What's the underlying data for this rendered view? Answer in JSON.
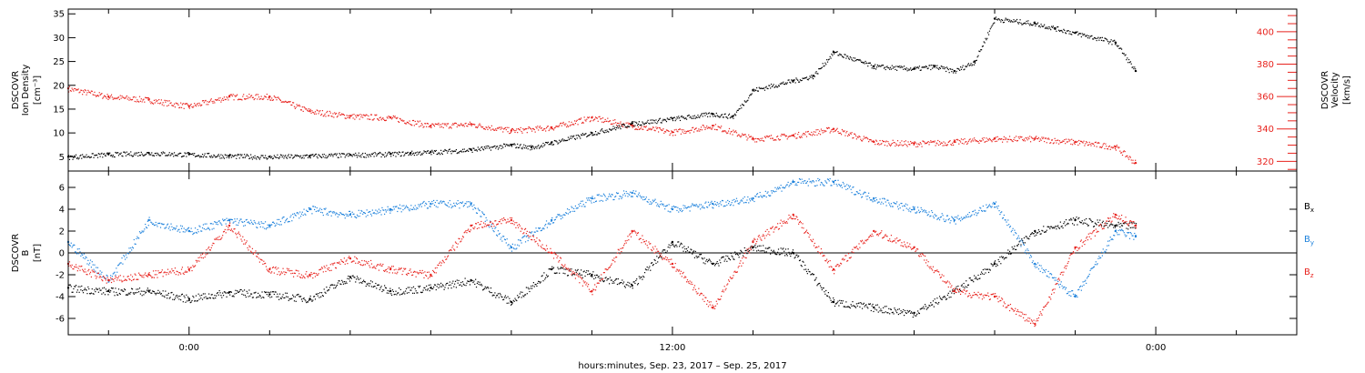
{
  "figure": {
    "xlabel": "hours:minutes, Sep. 23, 2017 – Sep. 25, 2017",
    "x_ticks": [
      "0:00",
      "12:00",
      "0:00"
    ]
  },
  "chart_data": [
    {
      "type": "scatter",
      "title": "",
      "xlabel": "hours:minutes, Sep. 23, 2017 – Sep. 25, 2017",
      "x_units": "hours since 2017-09-23 00:00",
      "xlim": [
        -3,
        27.5
      ],
      "x_tick_labels": [
        "0:00",
        "12:00",
        "0:00"
      ],
      "y_left": {
        "label_lines": [
          "DSCOVR",
          "Ion Density",
          "[cm⁻³]"
        ],
        "ylim": [
          2,
          36
        ],
        "ticks": [
          5,
          10,
          15,
          20,
          25,
          30,
          35
        ],
        "color": "#000000"
      },
      "y_right": {
        "label_lines": [
          "DSCOVR",
          "Velocity",
          "[km/s]"
        ],
        "ylim": [
          314,
          414
        ],
        "ticks": [
          320,
          340,
          360,
          380,
          400
        ],
        "color": "#e8231e"
      },
      "series": [
        {
          "axis": "left",
          "color": "#000000",
          "x": [
            -3,
            -2,
            -1,
            0,
            1,
            2,
            3,
            4,
            5,
            5.5,
            6,
            7,
            8,
            8.5,
            9,
            10,
            11,
            12,
            13,
            13.5,
            14,
            15,
            15.5,
            16,
            17,
            18,
            18.5,
            19,
            19.5,
            20,
            21,
            21.5,
            22,
            23,
            23.5
          ],
          "y": [
            5,
            5.5,
            5.8,
            5.5,
            5.2,
            5.0,
            5.2,
            5.4,
            5.6,
            5.8,
            6.0,
            6.5,
            7.5,
            7.0,
            8.0,
            10.0,
            12.0,
            13.0,
            14.0,
            13.5,
            19.0,
            21.0,
            22.0,
            27.0,
            24.0,
            23.5,
            24.0,
            23.0,
            25.0,
            34.0,
            33.0,
            32.0,
            31.0,
            29.0,
            23.0
          ]
        },
        {
          "axis": "right",
          "color": "#e8231e",
          "x": [
            -3,
            -2,
            -1,
            0,
            1,
            2,
            3,
            4,
            5,
            6,
            7,
            8,
            9,
            10,
            11,
            12,
            13,
            14,
            15,
            16,
            17,
            18,
            19,
            20,
            21,
            22,
            23,
            23.5
          ],
          "y": [
            365,
            360,
            358,
            354,
            360,
            360,
            351,
            348,
            347,
            342,
            343,
            339,
            341,
            347,
            342,
            338,
            342,
            334,
            336,
            340,
            332,
            331,
            332,
            334,
            334,
            332,
            329,
            319
          ]
        }
      ]
    },
    {
      "type": "scatter",
      "title": "",
      "xlabel": "hours:minutes, Sep. 23, 2017 – Sep. 25, 2017",
      "x_units": "hours since 2017-09-23 00:00",
      "xlim": [
        -3,
        27.5
      ],
      "x_tick_labels": [
        "0:00",
        "12:00",
        "0:00"
      ],
      "y_left": {
        "label_lines": [
          "DSCOVR",
          "B",
          "[nT]"
        ],
        "ylim": [
          -7.5,
          7.5
        ],
        "ticks": [
          -6,
          -4,
          -2,
          0,
          2,
          4,
          6
        ],
        "color": "#000000"
      },
      "zero_line": true,
      "series": [
        {
          "name": "Bx",
          "color": "#000000",
          "x": [
            -3,
            -2,
            -1,
            0,
            1,
            2,
            3,
            4,
            5,
            6,
            7,
            8,
            9,
            10,
            11,
            12,
            13,
            14,
            15,
            16,
            17,
            18,
            19,
            20,
            21,
            22,
            23,
            23.5
          ],
          "y": [
            -3.2,
            -3.5,
            -3.5,
            -4.2,
            -3.6,
            -3.8,
            -4.2,
            -2.2,
            -3.5,
            -3.2,
            -2.5,
            -4.5,
            -1.5,
            -2.0,
            -3.0,
            1.0,
            -1.0,
            0.5,
            0,
            -4.5,
            -5.0,
            -5.5,
            -3.5,
            -1.0,
            2.0,
            3.0,
            2.5,
            2.5
          ]
        },
        {
          "name": "By",
          "color": "#1e82dc",
          "x": [
            -3,
            -2,
            -1,
            0,
            1,
            2,
            3,
            4,
            5,
            6,
            7,
            8,
            9,
            10,
            11,
            12,
            13,
            14,
            15,
            16,
            17,
            18,
            19,
            20,
            21,
            22,
            23,
            23.5
          ],
          "y": [
            1.0,
            -2.5,
            3.0,
            2.0,
            3.0,
            2.5,
            4.0,
            3.5,
            4.0,
            4.5,
            4.5,
            0.5,
            3.0,
            5.0,
            5.5,
            4.0,
            4.5,
            5.0,
            6.5,
            6.5,
            5.0,
            4.0,
            3.0,
            4.5,
            -1.0,
            -4.0,
            2.0,
            1.5
          ]
        },
        {
          "name": "Bz",
          "color": "#e8231e",
          "x": [
            -3,
            -2,
            -1,
            0,
            1,
            2,
            3,
            4,
            5,
            6,
            7,
            8,
            9,
            10,
            11,
            12,
            13,
            14,
            15,
            16,
            17,
            18,
            19,
            20,
            21,
            22,
            23,
            23.5
          ],
          "y": [
            -1.0,
            -2.5,
            -2.0,
            -1.5,
            2.5,
            -1.5,
            -2.0,
            -0.5,
            -1.5,
            -2.0,
            2.5,
            3.0,
            0,
            -3.5,
            2.0,
            -1.0,
            -5.0,
            1.0,
            3.5,
            -1.5,
            2.0,
            0.5,
            -3.5,
            -4.0,
            -6.5,
            0.5,
            3.5,
            2.5
          ]
        }
      ]
    }
  ],
  "legend_labels": [
    "B",
    "B",
    "B"
  ],
  "legend_subscripts": [
    "x",
    "y",
    "z"
  ],
  "legend_colors": [
    "#000000",
    "#1e82dc",
    "#e8231e"
  ]
}
